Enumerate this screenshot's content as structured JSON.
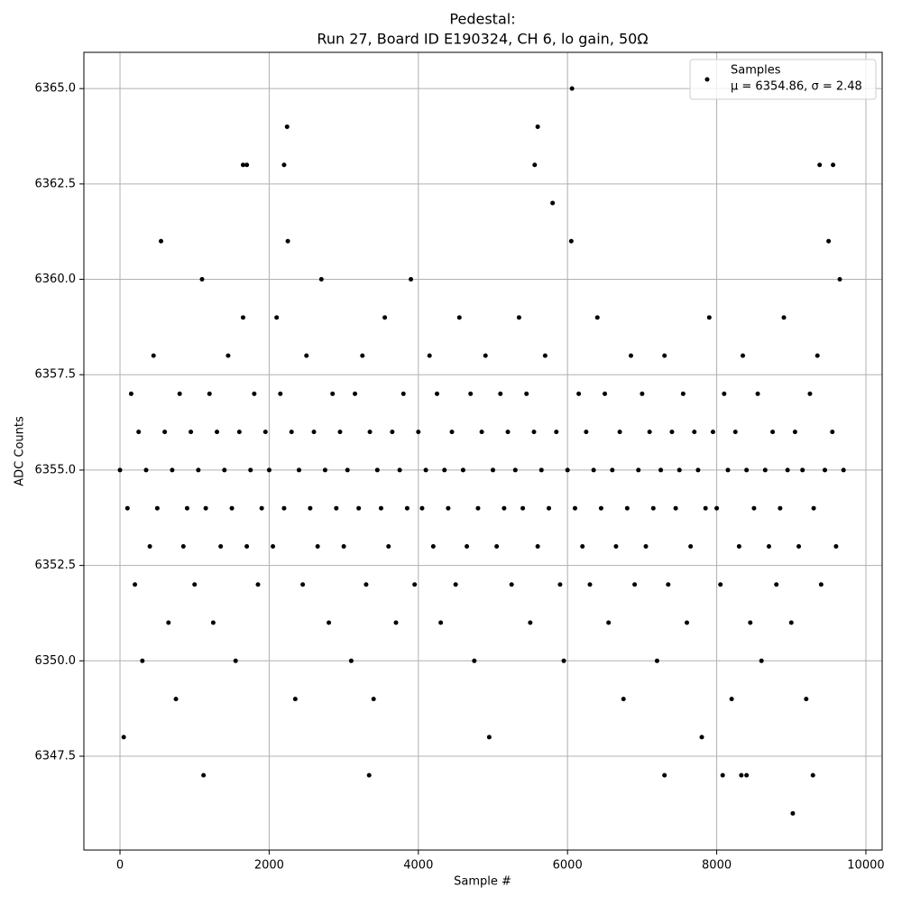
{
  "chart_data": {
    "type": "scatter",
    "title": "Pedestal:",
    "subtitle": "Run 27, Board ID E190324, CH 6, lo gain, 50Ω",
    "x_label": "Sample #",
    "y_label": "ADC Counts",
    "xlim": [
      -484,
      10218
    ],
    "ylim": [
      6345.04,
      6365.95
    ],
    "xticks": [
      0,
      2000,
      4000,
      6000,
      8000,
      10000
    ],
    "yticks": [
      6347.5,
      {
        "value": 6350,
        "label": "6350.0"
      },
      6352.5,
      {
        "value": 6355,
        "label": "6355.0"
      },
      6357.5,
      {
        "value": 6360,
        "label": "6360.0"
      },
      6362.5,
      {
        "value": 6365,
        "label": "6365.0"
      }
    ],
    "grid": true,
    "legend_position": "upper right",
    "legend_note": "μ = 6354.86, σ = 2.48",
    "series": [
      {
        "name": "Samples",
        "color": "#000000",
        "x": [
          0,
          50,
          100,
          150,
          200,
          250,
          300,
          350,
          400,
          450,
          500,
          550,
          600,
          650,
          700,
          750,
          800,
          850,
          900,
          950,
          1000,
          1050,
          1100,
          1150,
          1200,
          1250,
          1300,
          1350,
          1400,
          1450,
          1500,
          1550,
          1600,
          1650,
          1700,
          1750,
          1800,
          1850,
          1900,
          1950,
          2000,
          2050,
          2100,
          2150,
          2200,
          2250,
          2300,
          2350,
          2400,
          2450,
          2500,
          2550,
          2600,
          2650,
          2700,
          2750,
          2800,
          2850,
          2900,
          2950,
          3000,
          3050,
          3100,
          3150,
          3200,
          3250,
          3300,
          3350,
          3400,
          3450,
          3500,
          3550,
          3600,
          3650,
          3700,
          3750,
          3800,
          3850,
          3900,
          3950,
          4000,
          4050,
          4100,
          4150,
          4200,
          4250,
          4300,
          4350,
          4400,
          4450,
          4500,
          4550,
          4600,
          4650,
          4700,
          4750,
          4800,
          4850,
          4900,
          4950,
          5000,
          5050,
          5100,
          5150,
          5200,
          5250,
          5300,
          5350,
          5400,
          5450,
          5500,
          5550,
          5600,
          5650,
          5700,
          5750,
          5800,
          5850,
          5900,
          5950,
          6000,
          6050,
          6100,
          6150,
          6200,
          6250,
          6300,
          6350,
          6400,
          6450,
          6500,
          6550,
          6600,
          6650,
          6700,
          6750,
          6800,
          6850,
          6900,
          6950,
          7000,
          7050,
          7100,
          7150,
          7200,
          7250,
          7300,
          7350,
          7400,
          7450,
          7500,
          7550,
          7600,
          7650,
          7700,
          7750,
          7800,
          7850,
          7900,
          7950,
          8000,
          8050,
          8100,
          8150,
          8200,
          8250,
          8300,
          8350,
          8400,
          8450,
          8500,
          8550,
          8600,
          8650,
          8700,
          8750,
          8800,
          8850,
          8900,
          8950,
          9000,
          9050,
          9100,
          9150,
          9200,
          9250,
          9300,
          9350,
          9400,
          9450,
          9500,
          9550,
          9600,
          9650,
          9700,
          1120,
          3340,
          7300,
          8080,
          8330,
          8400,
          9290,
          9020,
          6060,
          2240,
          5600,
          1650,
          1700,
          2200,
          5560,
          9380,
          9560
        ],
        "y": [
          6355,
          6348,
          6354,
          6357,
          6352,
          6356,
          6350,
          6355,
          6353,
          6358,
          6354,
          6361,
          6356,
          6351,
          6355,
          6349,
          6357,
          6353,
          6354,
          6356,
          6352,
          6355,
          6360,
          6354,
          6357,
          6351,
          6356,
          6353,
          6355,
          6358,
          6354,
          6350,
          6356,
          6359,
          6353,
          6355,
          6357,
          6352,
          6354,
          6356,
          6355,
          6353,
          6359,
          6357,
          6354,
          6361,
          6356,
          6349,
          6355,
          6352,
          6358,
          6354,
          6356,
          6353,
          6360,
          6355,
          6351,
          6357,
          6354,
          6356,
          6353,
          6355,
          6350,
          6357,
          6354,
          6358,
          6352,
          6356,
          6349,
          6355,
          6354,
          6359,
          6353,
          6356,
          6351,
          6355,
          6357,
          6354,
          6360,
          6352,
          6356,
          6354,
          6355,
          6358,
          6353,
          6357,
          6351,
          6355,
          6354,
          6356,
          6352,
          6359,
          6355,
          6353,
          6357,
          6350,
          6354,
          6356,
          6358,
          6348,
          6355,
          6353,
          6357,
          6354,
          6356,
          6352,
          6355,
          6359,
          6354,
          6357,
          6351,
          6356,
          6353,
          6355,
          6358,
          6354,
          6362,
          6356,
          6352,
          6350,
          6355,
          6361,
          6354,
          6357,
          6353,
          6356,
          6352,
          6355,
          6359,
          6354,
          6357,
          6351,
          6355,
          6353,
          6356,
          6349,
          6354,
          6358,
          6352,
          6355,
          6357,
          6353,
          6356,
          6354,
          6350,
          6355,
          6358,
          6352,
          6356,
          6354,
          6355,
          6357,
          6351,
          6353,
          6356,
          6355,
          6348,
          6354,
          6359,
          6356,
          6354,
          6352,
          6357,
          6355,
          6349,
          6356,
          6353,
          6358,
          6355,
          6351,
          6354,
          6357,
          6350,
          6355,
          6353,
          6356,
          6352,
          6354,
          6359,
          6355,
          6351,
          6356,
          6353,
          6355,
          6349,
          6357,
          6354,
          6358,
          6352,
          6355,
          6361,
          6356,
          6353,
          6360,
          6355,
          6347,
          6347,
          6347,
          6347,
          6347,
          6347,
          6347,
          6346,
          6365,
          6364,
          6364,
          6363,
          6363,
          6363,
          6363,
          6363,
          6363
        ]
      }
    ]
  }
}
